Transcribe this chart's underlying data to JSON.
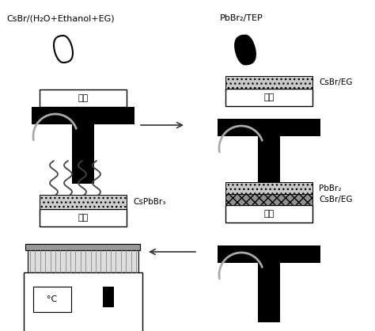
{
  "background_color": "#ffffff",
  "black": "#000000",
  "labels": {
    "top_left": "CsBr/(H₂O+Ethanol+EG)",
    "top_right": "PbBr₂/TEP",
    "label_csbr_eg": "CsBr/EG",
    "label_pbbr2": "PbBr₂",
    "label_csbr_eg2": "CsBr/EG",
    "label_cspbbr3": "CsPbBr₃",
    "label_jidi": "基底",
    "label_celsius": "°C"
  }
}
